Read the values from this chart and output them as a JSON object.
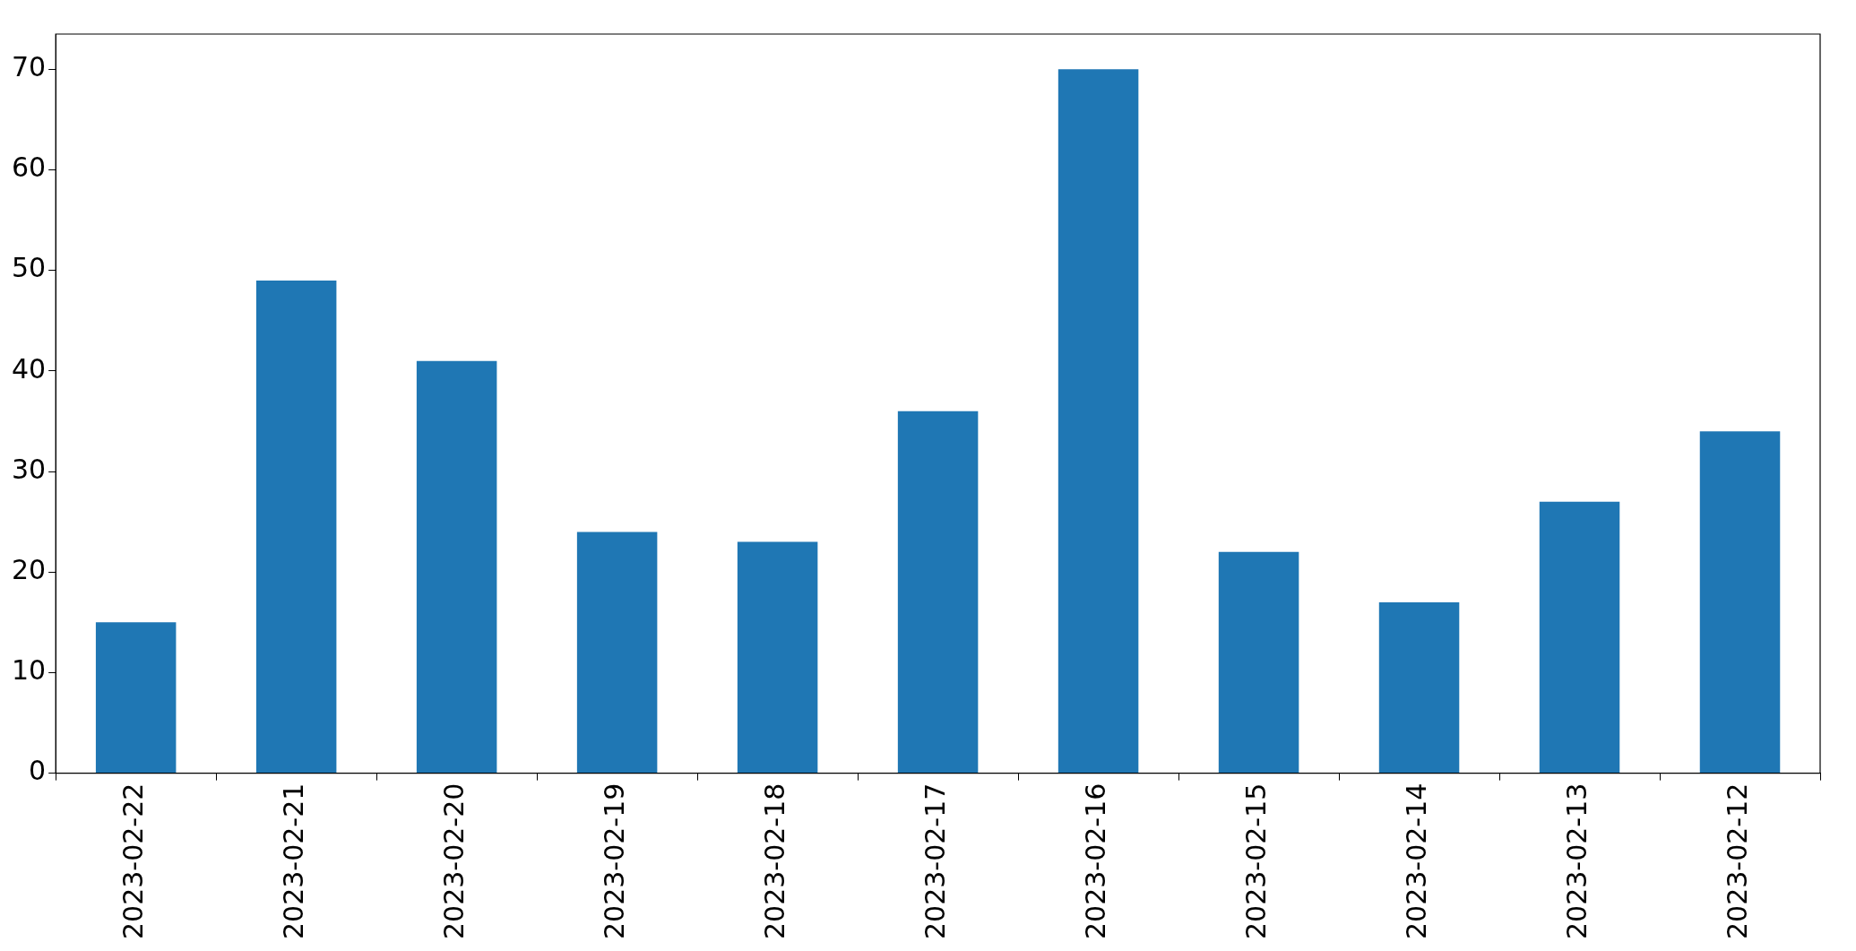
{
  "chart_data": {
    "type": "bar",
    "categories": [
      "2023-02-22",
      "2023-02-21",
      "2023-02-20",
      "2023-02-19",
      "2023-02-18",
      "2023-02-17",
      "2023-02-16",
      "2023-02-15",
      "2023-02-14",
      "2023-02-13",
      "2023-02-12"
    ],
    "values": [
      15,
      49,
      41,
      24,
      23,
      36,
      70,
      22,
      17,
      27,
      34
    ],
    "color": "#1f77b4",
    "ylim": [
      0,
      73.5
    ],
    "yticks": [
      0,
      10,
      20,
      30,
      40,
      50,
      60,
      70
    ],
    "grid": false,
    "legend": false
  }
}
